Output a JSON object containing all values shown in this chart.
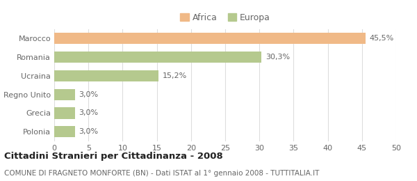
{
  "categories": [
    "Marocco",
    "Romania",
    "Ucraina",
    "Regno Unito",
    "Grecia",
    "Polonia"
  ],
  "values": [
    45.5,
    30.3,
    15.2,
    3.0,
    3.0,
    3.0
  ],
  "labels": [
    "45,5%",
    "30,3%",
    "15,2%",
    "3,0%",
    "3,0%",
    "3,0%"
  ],
  "colors": [
    "#f0b987",
    "#b5c98e",
    "#b5c98e",
    "#b5c98e",
    "#b5c98e",
    "#b5c98e"
  ],
  "legend_items": [
    {
      "label": "Africa",
      "color": "#f0b987"
    },
    {
      "label": "Europa",
      "color": "#b5c98e"
    }
  ],
  "xlim": [
    0,
    50
  ],
  "xticks": [
    0,
    5,
    10,
    15,
    20,
    25,
    30,
    35,
    40,
    45,
    50
  ],
  "title": "Cittadini Stranieri per Cittadinanza - 2008",
  "subtitle": "COMUNE DI FRAGNETO MONFORTE (BN) - Dati ISTAT al 1° gennaio 2008 - TUTTITALIA.IT",
  "background_color": "#ffffff",
  "grid_color": "#dddddd",
  "bar_height": 0.6,
  "title_fontsize": 9.5,
  "subtitle_fontsize": 7.5,
  "label_fontsize": 8,
  "tick_fontsize": 8,
  "ytick_fontsize": 8
}
